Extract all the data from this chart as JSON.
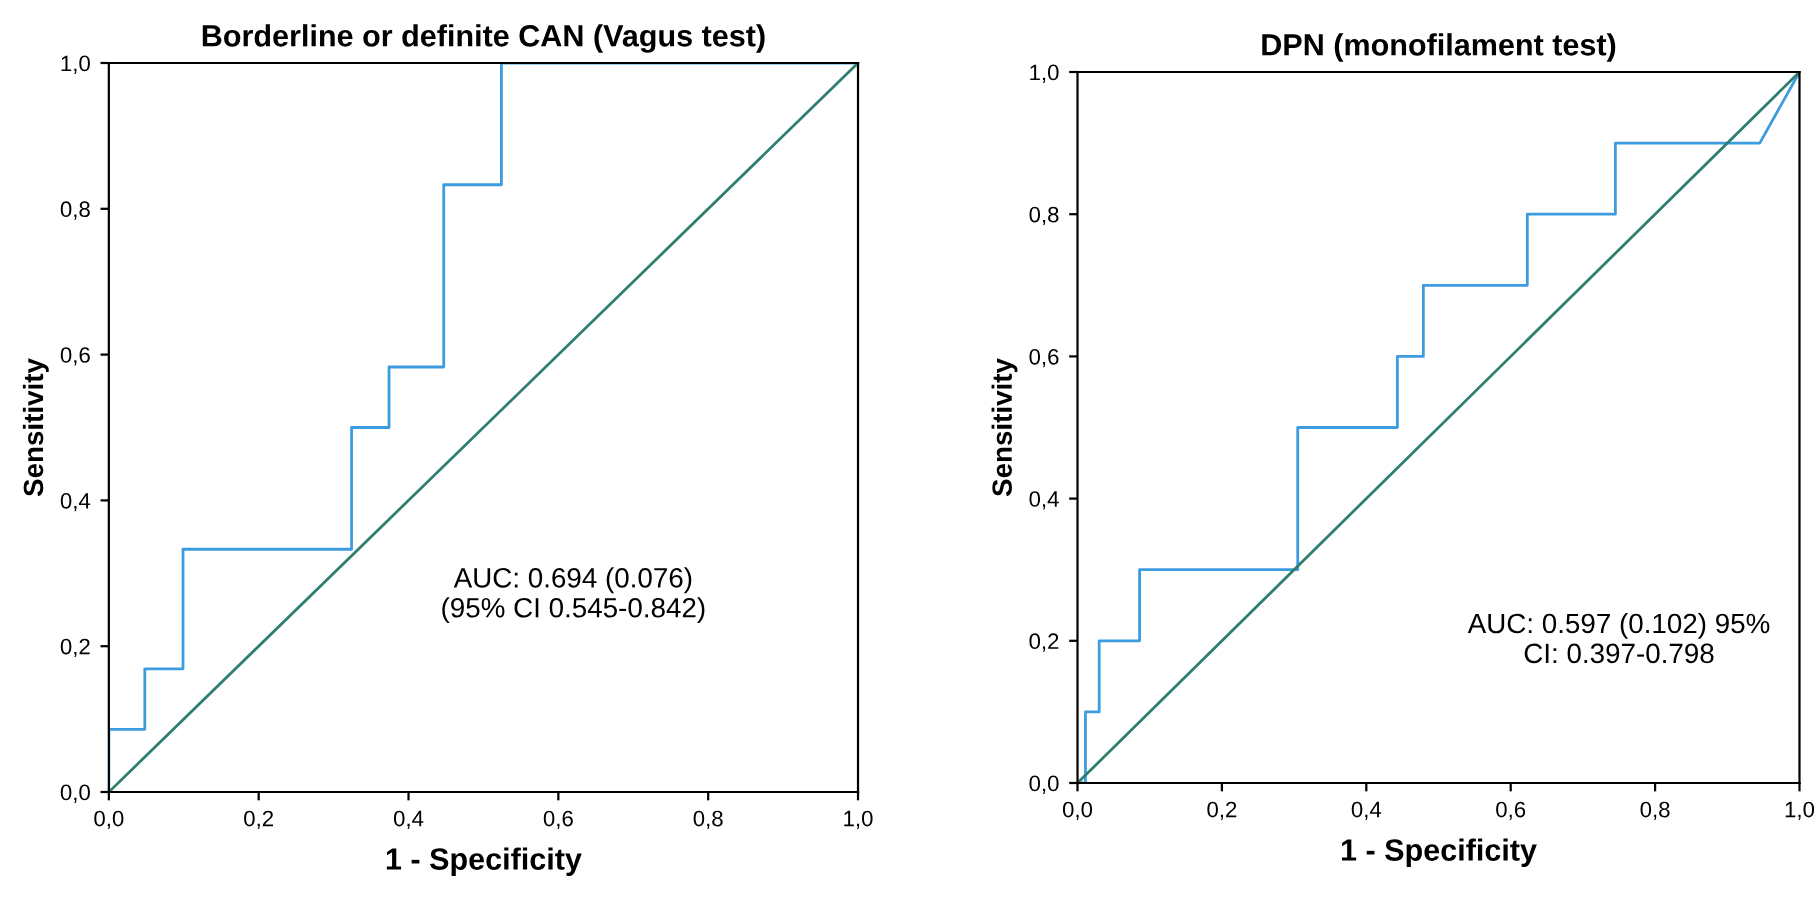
{
  "chart_data": [
    {
      "type": "line",
      "title": "Borderline or definite CAN (Vagus test)",
      "xlabel": "1 - Specificity",
      "ylabel": "Sensitivity",
      "series": [
        {
          "color": "#3d9be0",
          "x": [
            0,
            0,
            0.048,
            0.048,
            0.099,
            0.099,
            0.324,
            0.324,
            0.374,
            0.374,
            0.447,
            0.447,
            0.524,
            0.524,
            1.0
          ],
          "values": [
            0,
            0.086,
            0.086,
            0.169,
            0.169,
            0.333,
            0.333,
            0.5,
            0.5,
            0.583,
            0.583,
            0.833,
            0.833,
            1.0,
            1.0
          ]
        },
        {
          "color": "#2f7f70",
          "x": [
            0,
            1
          ],
          "values": [
            0,
            1
          ]
        }
      ],
      "xlim": [
        0,
        1
      ],
      "ylim": [
        0,
        1
      ],
      "xticks": [
        {
          "value": 0,
          "label": "0,0"
        },
        {
          "value": 0.2,
          "label": "0,2"
        },
        {
          "value": 0.4,
          "label": "0,4"
        },
        {
          "value": 0.6,
          "label": "0,6"
        },
        {
          "value": 0.8,
          "label": "0,8"
        },
        {
          "value": 1,
          "label": "1,0"
        }
      ],
      "yticks": [
        {
          "value": 0,
          "label": "0,0"
        },
        {
          "value": 0.2,
          "label": "0,2"
        },
        {
          "value": 0.4,
          "label": "0,4"
        },
        {
          "value": 0.6,
          "label": "0,6"
        },
        {
          "value": 0.8,
          "label": "0,8"
        },
        {
          "value": 1,
          "label": "1,0"
        }
      ],
      "annotations": [
        "AUC: 0.694 (0.076)\n(95% CI 0.545-0.842)"
      ],
      "grid": false,
      "legend": false
    },
    {
      "type": "line",
      "title": "DPN (monofilament test)",
      "xlabel": "1 - Specificity",
      "ylabel": "Sensitivity",
      "series": [
        {
          "color": "#3d9be0",
          "x": [
            0,
            0.011,
            0.011,
            0.03,
            0.03,
            0.086,
            0.086,
            0.305,
            0.305,
            0.443,
            0.443,
            0.479,
            0.479,
            0.623,
            0.623,
            0.745,
            0.745,
            0.945,
            1.0
          ],
          "values": [
            0,
            0,
            0.1,
            0.1,
            0.2,
            0.2,
            0.3,
            0.3,
            0.5,
            0.5,
            0.6,
            0.6,
            0.7,
            0.7,
            0.8,
            0.8,
            0.9,
            0.9,
            1.0
          ]
        },
        {
          "color": "#2f7f70",
          "x": [
            0,
            1
          ],
          "values": [
            0,
            1
          ]
        }
      ],
      "xlim": [
        0,
        1
      ],
      "ylim": [
        0,
        1
      ],
      "xticks": [
        {
          "value": 0,
          "label": "0,0"
        },
        {
          "value": 0.2,
          "label": "0,2"
        },
        {
          "value": 0.4,
          "label": "0,4"
        },
        {
          "value": 0.6,
          "label": "0,6"
        },
        {
          "value": 0.8,
          "label": "0,8"
        },
        {
          "value": 1,
          "label": "1,0"
        }
      ],
      "yticks": [
        {
          "value": 0,
          "label": "0,0"
        },
        {
          "value": 0.2,
          "label": "0,2"
        },
        {
          "value": 0.4,
          "label": "0,4"
        },
        {
          "value": 0.6,
          "label": "0,6"
        },
        {
          "value": 0.8,
          "label": "0,8"
        },
        {
          "value": 1,
          "label": "1,0"
        }
      ],
      "annotations": [
        "AUC: 0.597 (0.102) 95%\nCI: 0.397-0.798"
      ],
      "grid": false,
      "legend": false
    }
  ]
}
